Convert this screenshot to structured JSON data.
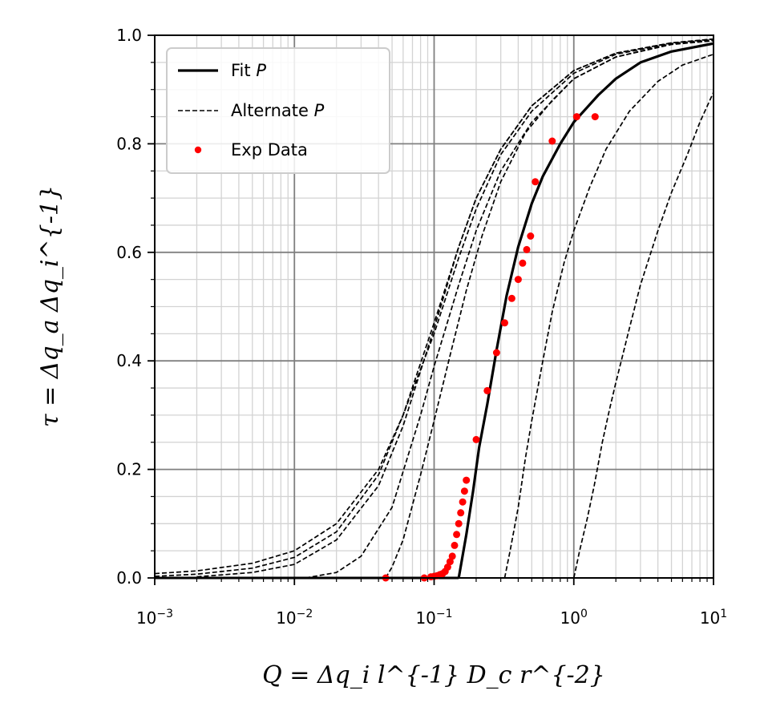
{
  "chart_data": {
    "type": "line",
    "xscale": "log",
    "xlim": [
      0.001,
      10
    ],
    "ylim": [
      0,
      1
    ],
    "grid": true,
    "legend_placement": "top-left",
    "xlabel": "Q = Δq_i l^{-1} D_c r^{-2}",
    "ylabel": "τ = Δq_a Δq_i^{-1}",
    "x_ticks": [
      0.001,
      0.01,
      0.1,
      1,
      10
    ],
    "x_tick_bases": [
      "10",
      "10",
      "10",
      "10",
      "10"
    ],
    "x_tick_exps": [
      "−3",
      "−2",
      "−1",
      "0",
      "1"
    ],
    "y_ticks": [
      0,
      0.2,
      0.4,
      0.6,
      0.8,
      1.0
    ],
    "y_tick_labels": [
      "0.0",
      "0.2",
      "0.4",
      "0.6",
      "0.8",
      "1.0"
    ],
    "legend": {
      "fit_label": "Fit",
      "fit_var": "P",
      "alt_label": "Alternate",
      "alt_var": "P",
      "exp_label": "Exp Data"
    },
    "colors": {
      "fit": "#000000",
      "alternate": "#000000",
      "exp": "#ff0000"
    },
    "series": [
      {
        "name": "Fit P",
        "style": "solid",
        "x": [
          0.15,
          0.17,
          0.19,
          0.21,
          0.24,
          0.28,
          0.33,
          0.4,
          0.5,
          0.6,
          0.8,
          1.0,
          1.5,
          2,
          3,
          5,
          10
        ],
        "y": [
          0.0,
          0.08,
          0.16,
          0.24,
          0.32,
          0.42,
          0.52,
          0.61,
          0.69,
          0.74,
          0.8,
          0.84,
          0.89,
          0.92,
          0.95,
          0.97,
          0.985
        ]
      },
      {
        "name": "Alternate P",
        "style": "dashed",
        "x": [
          0.001,
          0.002,
          0.005,
          0.01,
          0.02,
          0.04,
          0.06,
          0.1,
          0.15,
          0.2,
          0.3,
          0.5,
          1,
          2,
          5,
          10
        ],
        "y": [
          0.008,
          0.013,
          0.027,
          0.05,
          0.1,
          0.2,
          0.3,
          0.45,
          0.59,
          0.68,
          0.78,
          0.86,
          0.93,
          0.965,
          0.985,
          0.992
        ]
      },
      {
        "name": "Alternate P",
        "style": "dashed",
        "x": [
          0.001,
          0.002,
          0.005,
          0.01,
          0.02,
          0.04,
          0.06,
          0.1,
          0.15,
          0.2,
          0.3,
          0.5,
          1,
          2,
          5,
          10
        ],
        "y": [
          0.003,
          0.007,
          0.018,
          0.038,
          0.085,
          0.19,
          0.3,
          0.47,
          0.61,
          0.7,
          0.79,
          0.87,
          0.935,
          0.967,
          0.986,
          0.993
        ]
      },
      {
        "name": "Alternate P",
        "style": "dashed",
        "x": [
          0.002,
          0.005,
          0.01,
          0.02,
          0.04,
          0.06,
          0.1,
          0.15,
          0.2,
          0.3,
          0.5,
          1,
          2,
          5,
          10
        ],
        "y": [
          0.002,
          0.01,
          0.025,
          0.07,
          0.17,
          0.28,
          0.46,
          0.61,
          0.7,
          0.79,
          0.87,
          0.935,
          0.967,
          0.986,
          0.993
        ]
      },
      {
        "name": "Alternate P",
        "style": "dashed",
        "x": [
          0.012,
          0.02,
          0.03,
          0.05,
          0.08,
          0.1,
          0.15,
          0.2,
          0.3,
          0.5,
          1,
          2,
          5,
          10
        ],
        "y": [
          0.0,
          0.01,
          0.04,
          0.13,
          0.3,
          0.39,
          0.54,
          0.64,
          0.75,
          0.84,
          0.92,
          0.96,
          0.984,
          0.99
        ]
      },
      {
        "name": "Alternate P",
        "style": "dashed",
        "x": [
          0.045,
          0.05,
          0.06,
          0.08,
          0.1,
          0.13,
          0.17,
          0.22,
          0.3,
          0.45,
          0.7,
          1,
          2,
          5,
          10
        ],
        "y": [
          0.0,
          0.02,
          0.07,
          0.19,
          0.29,
          0.41,
          0.53,
          0.63,
          0.73,
          0.82,
          0.88,
          0.92,
          0.96,
          0.983,
          0.99
        ]
      },
      {
        "name": "Alternate P",
        "style": "dashed",
        "x": [
          0.32,
          0.35,
          0.4,
          0.45,
          0.5,
          0.6,
          0.7,
          0.85,
          1.0,
          1.3,
          1.7,
          2.5,
          4,
          6,
          10
        ],
        "y": [
          0.0,
          0.05,
          0.13,
          0.22,
          0.29,
          0.4,
          0.49,
          0.58,
          0.64,
          0.72,
          0.79,
          0.86,
          0.915,
          0.945,
          0.965
        ]
      },
      {
        "name": "Alternate P",
        "style": "dashed",
        "x": [
          1.0,
          1.1,
          1.25,
          1.4,
          1.6,
          1.8,
          2.0,
          2.5,
          3,
          4,
          5,
          6.5,
          8,
          10
        ],
        "y": [
          0.0,
          0.05,
          0.11,
          0.17,
          0.25,
          0.31,
          0.36,
          0.46,
          0.54,
          0.64,
          0.71,
          0.78,
          0.84,
          0.895
        ]
      }
    ],
    "exp_data": {
      "name": "Exp Data",
      "x": [
        0.045,
        0.085,
        0.095,
        0.1,
        0.105,
        0.11,
        0.115,
        0.12,
        0.125,
        0.13,
        0.135,
        0.14,
        0.145,
        0.15,
        0.155,
        0.16,
        0.165,
        0.17,
        0.2,
        0.24,
        0.28,
        0.32,
        0.36,
        0.4,
        0.43,
        0.46,
        0.49,
        0.53,
        0.7,
        1.05,
        1.42
      ],
      "y": [
        0.0,
        0.0,
        0.002,
        0.003,
        0.004,
        0.006,
        0.008,
        0.012,
        0.02,
        0.03,
        0.04,
        0.06,
        0.08,
        0.1,
        0.12,
        0.14,
        0.16,
        0.18,
        0.255,
        0.345,
        0.415,
        0.47,
        0.515,
        0.55,
        0.58,
        0.605,
        0.63,
        0.73,
        0.805,
        0.85,
        0.85
      ]
    }
  }
}
